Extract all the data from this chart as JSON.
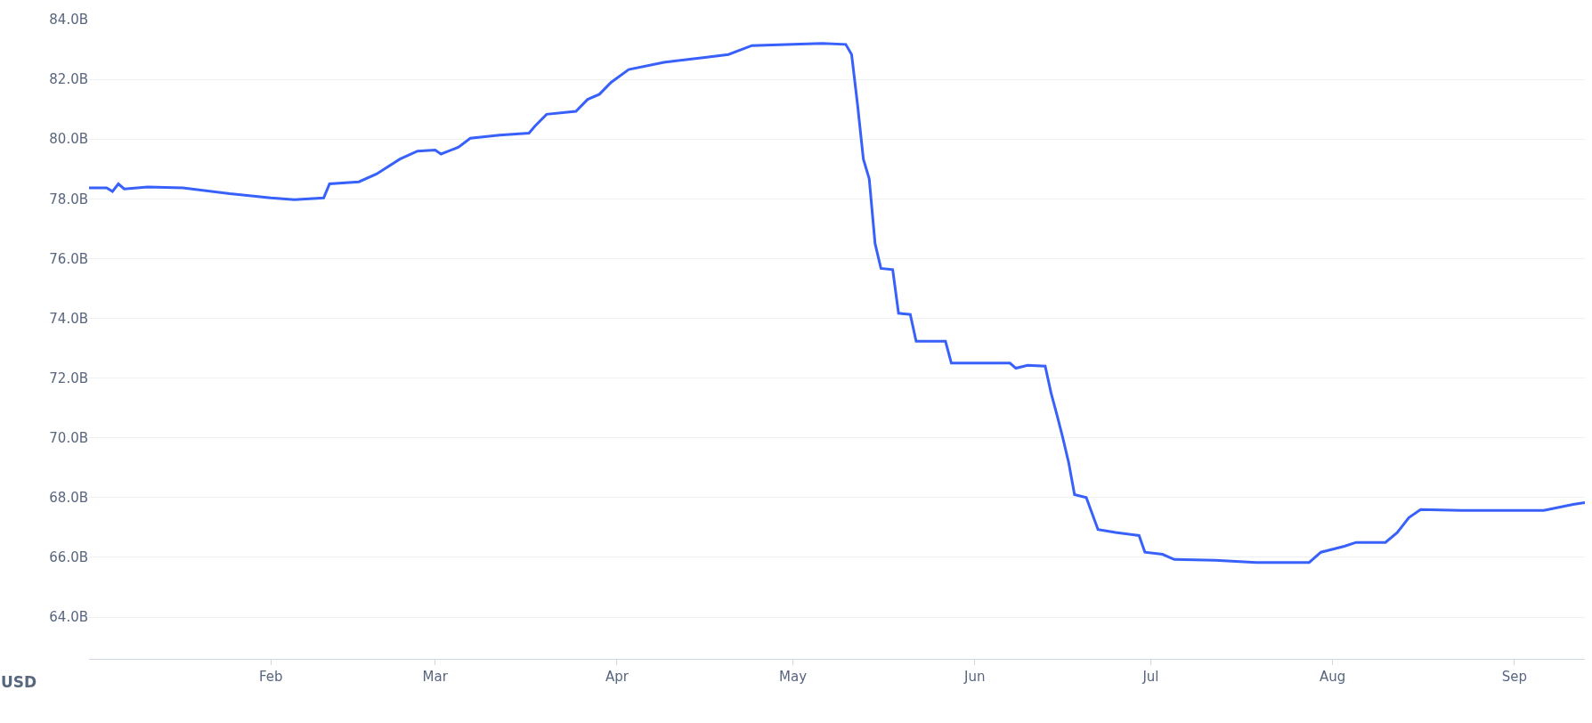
{
  "chart_data": {
    "type": "line",
    "annotations": [
      "USD"
    ],
    "x": [
      "--01-01",
      "--01-04",
      "--01-05",
      "--01-06",
      "--01-07",
      "--01-11",
      "--01-17",
      "--01-25",
      "--02-01",
      "--02-05",
      "--02-10",
      "--02-11",
      "--02-16",
      "--02-19",
      "--02-23",
      "--02-26",
      "--03-01",
      "--03-02",
      "--03-05",
      "--03-07",
      "--03-12",
      "--03-17",
      "--03-18",
      "--03-20",
      "--03-25",
      "--03-27",
      "--03-29",
      "--03-31",
      "--04-03",
      "--04-09",
      "--04-16",
      "--04-20",
      "--04-24",
      "--05-01",
      "--05-06",
      "--05-10",
      "--05-11",
      "--05-12",
      "--05-13",
      "--05-14",
      "--05-15",
      "--05-16",
      "--05-18",
      "--05-19",
      "--05-21",
      "--05-22",
      "--05-27",
      "--05-28",
      "--06-01",
      "--06-07",
      "--06-08",
      "--06-10",
      "--06-13",
      "--06-14",
      "--06-15",
      "--06-16",
      "--06-17",
      "--06-18",
      "--06-20",
      "--06-22",
      "--06-25",
      "--06-29",
      "--06-30",
      "--07-03",
      "--07-05",
      "--07-12",
      "--07-19",
      "--07-28",
      "--07-30",
      "--08-03",
      "--08-05",
      "--08-10",
      "--08-12",
      "--08-14",
      "--08-16",
      "--08-23",
      "--09-06",
      "--09-11",
      "--09-13"
    ],
    "series": [
      {
        "color": "#3861fb",
        "values": [
          78.37,
          78.37,
          78.25,
          78.5,
          78.33,
          78.4,
          78.37,
          78.17,
          78.03,
          77.97,
          78.03,
          78.5,
          78.57,
          78.83,
          79.33,
          79.6,
          79.63,
          79.5,
          79.73,
          80.03,
          80.13,
          80.2,
          80.43,
          80.83,
          80.93,
          81.33,
          81.5,
          81.9,
          82.33,
          82.57,
          82.73,
          82.83,
          83.13,
          83.17,
          83.2,
          83.17,
          82.83,
          81.17,
          79.33,
          78.67,
          76.5,
          75.67,
          75.63,
          74.17,
          74.13,
          73.23,
          73.23,
          72.5,
          72.5,
          72.5,
          72.33,
          72.43,
          72.4,
          71.5,
          70.77,
          70.0,
          69.17,
          68.1,
          68.0,
          66.93,
          66.83,
          66.73,
          66.17,
          66.1,
          65.93,
          65.9,
          65.83,
          65.83,
          66.17,
          66.37,
          66.5,
          66.5,
          66.83,
          67.33,
          67.6,
          67.57,
          67.57,
          67.77,
          67.83
        ]
      }
    ],
    "xlim": [
      "--01-01",
      "--09-13"
    ],
    "xticks": [
      {
        "value": "--02-01",
        "label": "Feb"
      },
      {
        "value": "--03-01",
        "label": "Mar"
      },
      {
        "value": "--04-01",
        "label": "Apr"
      },
      {
        "value": "--05-01",
        "label": "May"
      },
      {
        "value": "--06-01",
        "label": "Jun"
      },
      {
        "value": "--07-01",
        "label": "Jul"
      },
      {
        "value": "--08-01",
        "label": "Aug"
      },
      {
        "value": "--09-01",
        "label": "Sep"
      }
    ],
    "ylim": [
      62.6,
      84
    ],
    "yticks": [
      {
        "value": 64,
        "label": "64.0B"
      },
      {
        "value": 66,
        "label": "66.0B"
      },
      {
        "value": 68,
        "label": "68.0B"
      },
      {
        "value": 70,
        "label": "70.0B"
      },
      {
        "value": 72,
        "label": "72.0B"
      },
      {
        "value": 74,
        "label": "74.0B"
      },
      {
        "value": 76,
        "label": "76.0B"
      },
      {
        "value": 78,
        "label": "78.0B"
      },
      {
        "value": 80,
        "label": "80.0B"
      },
      {
        "value": 82,
        "label": "82.0B"
      },
      {
        "value": 84,
        "label": "84.0B"
      }
    ],
    "grid": "y",
    "marker": "none",
    "line_style": "solid"
  }
}
